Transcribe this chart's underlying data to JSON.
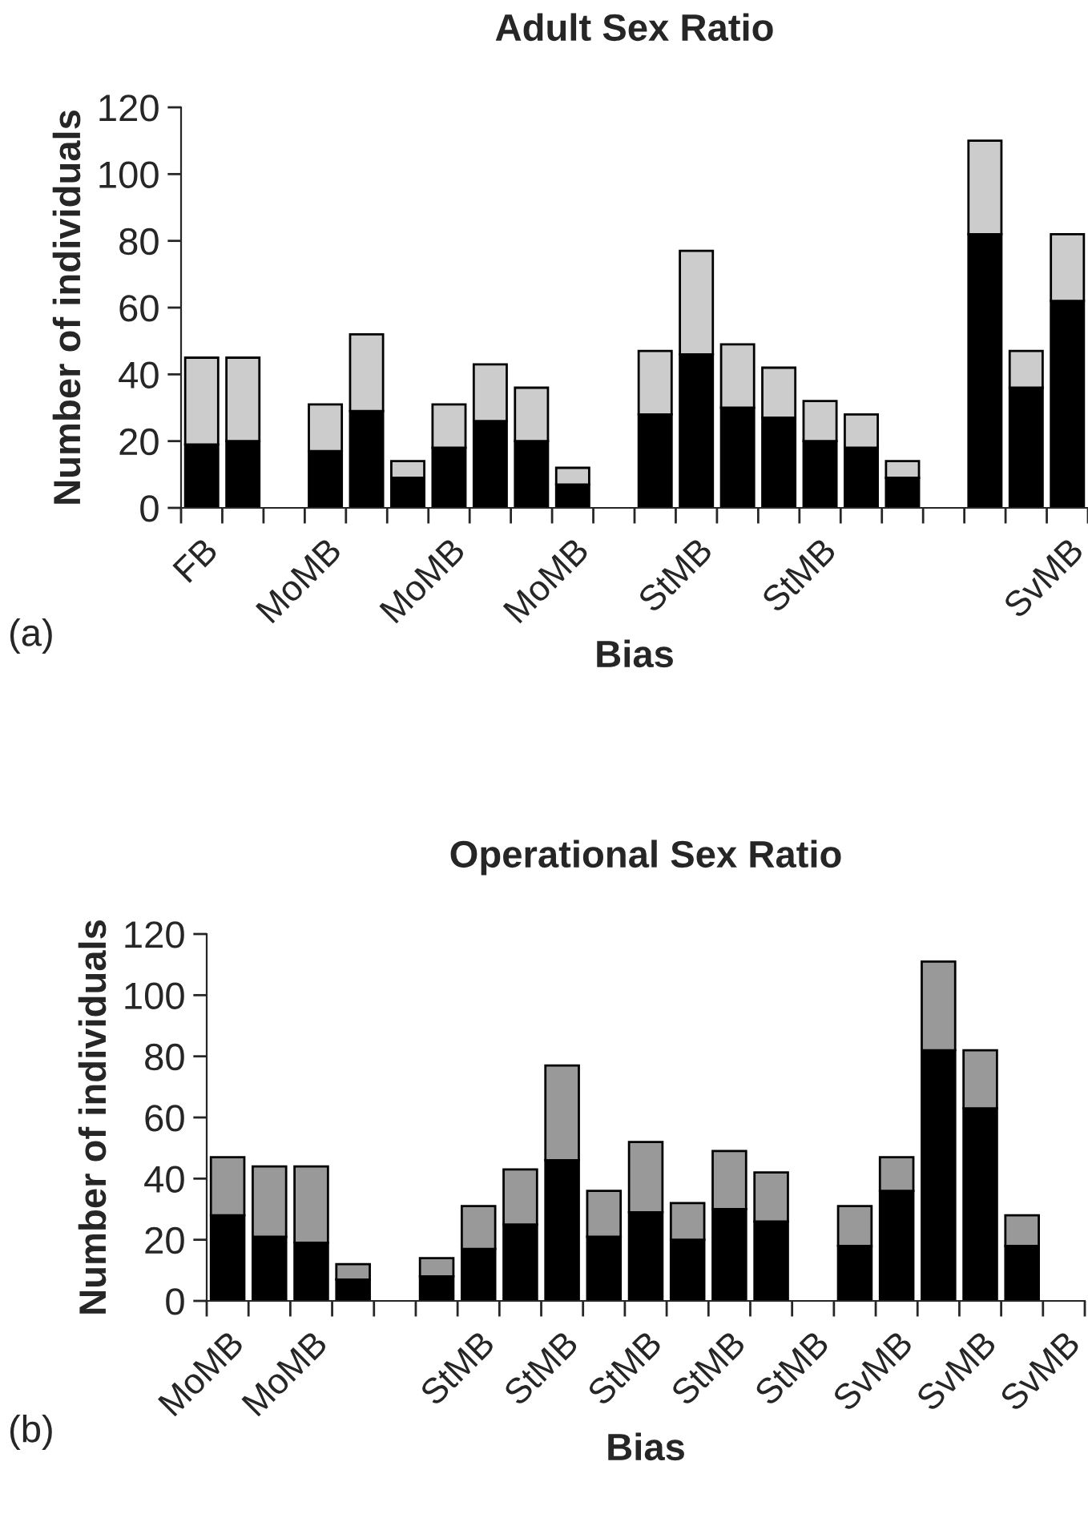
{
  "chart_data": [
    {
      "type": "bar",
      "stacked": true,
      "title": "Adult Sex Ratio",
      "xlabel": "Bias",
      "ylabel": "Number of individuals",
      "annotations": [
        "(a)"
      ],
      "categories": [
        "FB",
        null,
        null,
        "MoMB",
        null,
        null,
        "MoMB",
        null,
        null,
        "MoMB",
        null,
        null,
        "StMB",
        null,
        null,
        "StMB",
        null,
        null,
        null,
        null,
        null,
        "SvMB"
      ],
      "series": [
        {
          "color": "#000000",
          "values": [
            19,
            20,
            null,
            17,
            29,
            9,
            18,
            26,
            20,
            7,
            null,
            28,
            46,
            30,
            27,
            20,
            18,
            9,
            null,
            82,
            36,
            62
          ]
        },
        {
          "color": "#cccccc",
          "values": [
            26,
            25,
            null,
            14,
            23,
            5,
            13,
            17,
            16,
            5,
            null,
            19,
            31,
            19,
            15,
            12,
            10,
            5,
            null,
            28,
            11,
            20
          ]
        }
      ],
      "ylim": [
        0,
        120
      ],
      "yticks": [
        0,
        20,
        40,
        60,
        80,
        100,
        120
      ],
      "grid": false,
      "legend": false
    },
    {
      "type": "bar",
      "stacked": true,
      "title": "Operational Sex Ratio",
      "xlabel": "Bias",
      "ylabel": "Number of individuals",
      "annotations": [
        "(b)"
      ],
      "categories": [
        "MoMB",
        null,
        "MoMB",
        null,
        null,
        null,
        "StMB",
        null,
        "StMB",
        null,
        "StMB",
        null,
        "StMB",
        null,
        "StMB",
        null,
        "SvMB",
        null,
        "SvMB",
        null,
        "SvMB"
      ],
      "series": [
        {
          "color": "#000000",
          "values": [
            28,
            21,
            19,
            7,
            null,
            8,
            17,
            25,
            46,
            21,
            29,
            20,
            30,
            26,
            null,
            18,
            36,
            82,
            63,
            18,
            null
          ]
        },
        {
          "color": "#999999",
          "values": [
            19,
            23,
            25,
            5,
            null,
            6,
            14,
            18,
            31,
            15,
            23,
            12,
            19,
            16,
            null,
            13,
            11,
            29,
            19,
            10,
            null
          ]
        }
      ],
      "ylim": [
        0,
        120
      ],
      "yticks": [
        0,
        20,
        40,
        60,
        80,
        100,
        120
      ],
      "grid": false,
      "legend": false
    }
  ]
}
